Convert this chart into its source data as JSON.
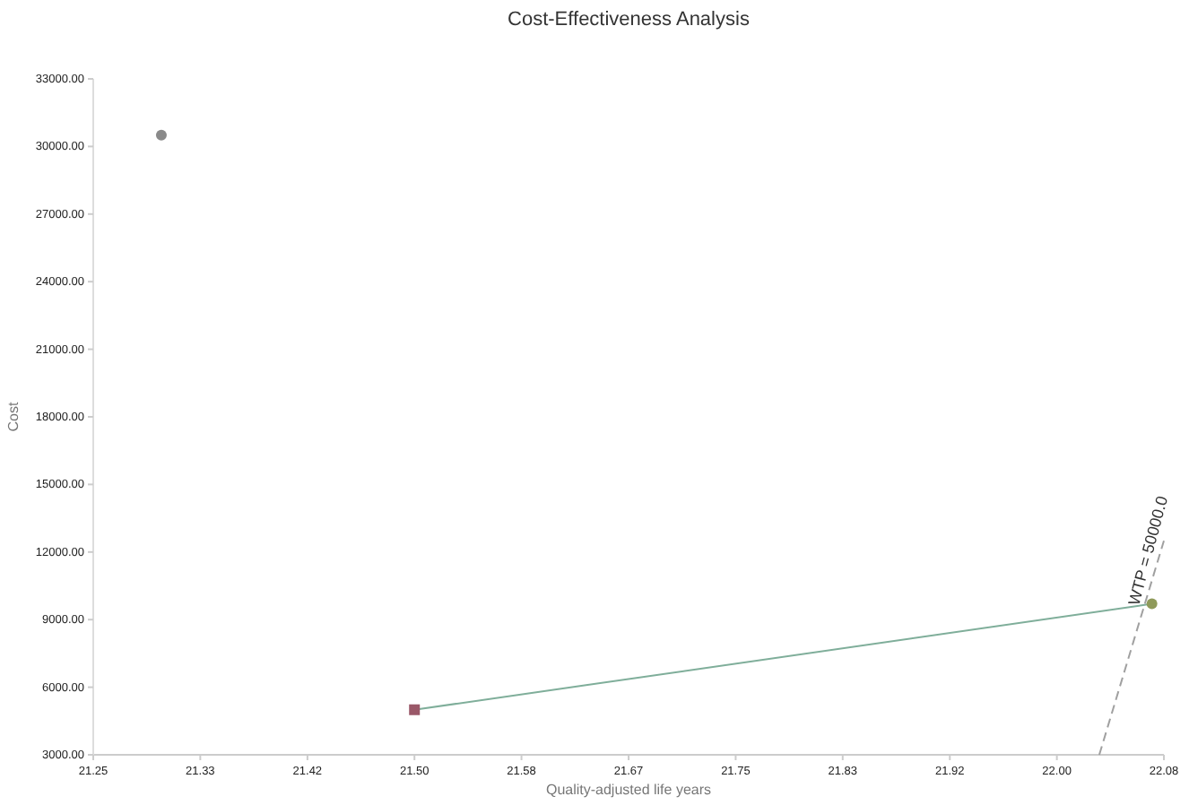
{
  "chart_data": {
    "type": "scatter",
    "title": "Cost-Effectiveness Analysis",
    "xlabel": "Quality-adjusted life years",
    "ylabel": "Cost",
    "xlim": [
      21.25,
      22.0833
    ],
    "xticks": [
      {
        "value": 21.25,
        "label": "21.25"
      },
      {
        "value": 21.3333,
        "label": "21.33"
      },
      {
        "value": 21.4167,
        "label": "21.42"
      },
      {
        "value": 21.5,
        "label": "21.50"
      },
      {
        "value": 21.5833,
        "label": "21.58"
      },
      {
        "value": 21.6667,
        "label": "21.67"
      },
      {
        "value": 21.75,
        "label": "21.75"
      },
      {
        "value": 21.8333,
        "label": "21.83"
      },
      {
        "value": 21.9167,
        "label": "21.92"
      },
      {
        "value": 22.0,
        "label": "22.00"
      },
      {
        "value": 22.0833,
        "label": "22.08"
      }
    ],
    "ylim": [
      3000,
      33000
    ],
    "yticks": [
      {
        "value": 3000,
        "label": "3000.00"
      },
      {
        "value": 6000,
        "label": "6000.00"
      },
      {
        "value": 9000,
        "label": "9000.00"
      },
      {
        "value": 12000,
        "label": "12000.00"
      },
      {
        "value": 15000,
        "label": "15000.00"
      },
      {
        "value": 18000,
        "label": "18000.00"
      },
      {
        "value": 21000,
        "label": "21000.00"
      },
      {
        "value": 24000,
        "label": "24000.00"
      },
      {
        "value": 27000,
        "label": "27000.00"
      },
      {
        "value": 30000,
        "label": "30000.00"
      },
      {
        "value": 33000,
        "label": "33000.00"
      }
    ],
    "series": [
      {
        "type": "line",
        "color": "#7fae9a",
        "x": [
          21.5,
          22.074
        ],
        "values": [
          5000,
          9700
        ],
        "marker": "none",
        "line_style": "solid"
      },
      {
        "type": "line",
        "color": "#a0a0a0",
        "x": [
          22.033,
          22.0833
        ],
        "values": [
          3000,
          12500
        ],
        "marker": "none",
        "line_style": "dashed"
      },
      {
        "color": "#8a8a8a",
        "x": [
          21.303
        ],
        "values": [
          30500
        ],
        "marker": "circle"
      },
      {
        "color": "#9a5868",
        "x": [
          21.5
        ],
        "values": [
          5000
        ],
        "marker": "square"
      },
      {
        "color": "#8f9a5a",
        "x": [
          22.074
        ],
        "values": [
          9700
        ],
        "marker": "circle"
      }
    ],
    "annotations": [
      {
        "text": "WTP = 50000.0",
        "x": 22.075,
        "y": 12000
      }
    ]
  }
}
